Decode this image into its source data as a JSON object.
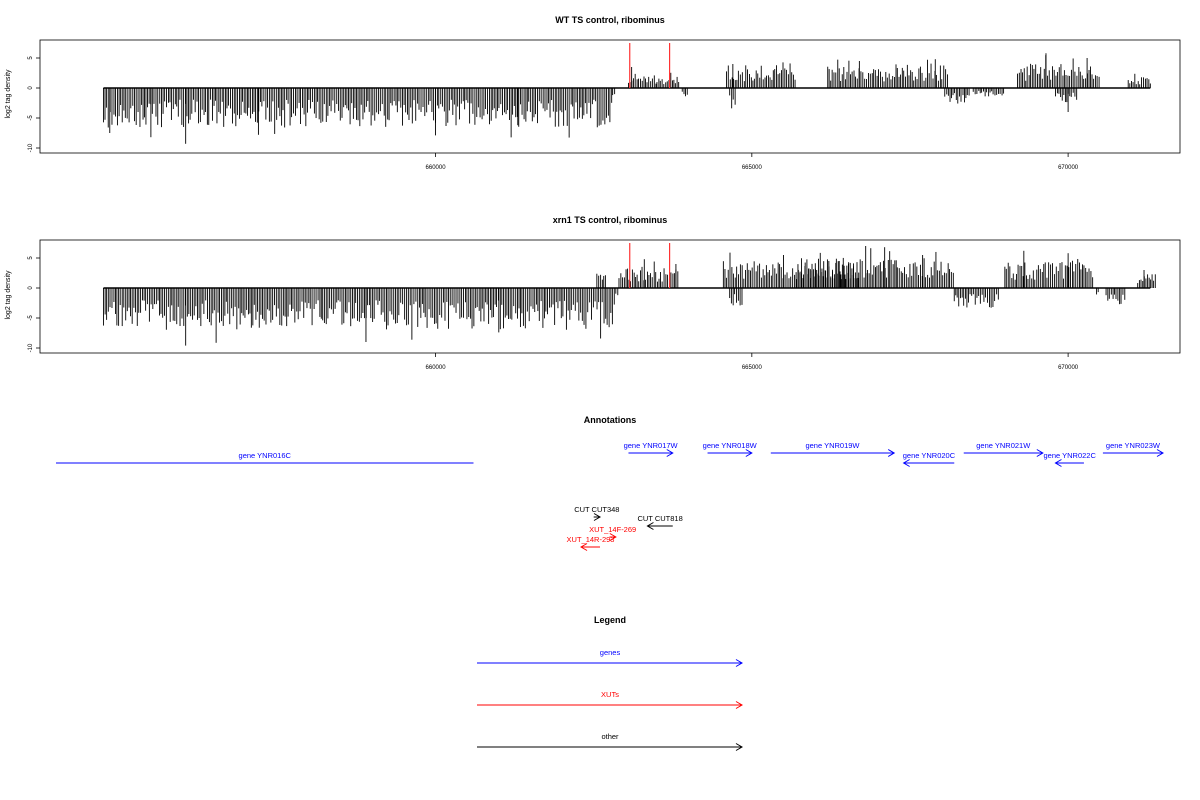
{
  "colors": {
    "gene": "#0000ff",
    "xut": "#ff0000",
    "other": "#000000",
    "axis": "#000000",
    "marker": "#ff3333"
  },
  "chart_data": [
    {
      "type": "bar",
      "title": "WT TS control, ribominus",
      "ylabel": "log2 tag density",
      "xlim": [
        654000,
        671500
      ],
      "ylim": [
        -10,
        7.5
      ],
      "x_ticks": [
        660000,
        665000,
        670000
      ],
      "y_ticks": [
        -10,
        -5,
        0,
        5
      ],
      "red_markers": [
        663070,
        663700
      ],
      "regions": [
        {
          "start": 654750,
          "end": 662800,
          "sign": -1,
          "amp": 5.5,
          "spikes": [
            [
              654850,
              7.5
            ],
            [
              655500,
              8.2
            ],
            [
              656050,
              9.3
            ],
            [
              657200,
              7.8
            ],
            [
              660000,
              7.9
            ],
            [
              661300,
              6.2
            ]
          ]
        },
        {
          "start": 662800,
          "end": 662850,
          "sign": -1,
          "amp": 1.0,
          "spikes": []
        },
        {
          "start": 663050,
          "end": 663500,
          "sign": 1,
          "amp": 2.0,
          "spikes": [
            [
              663100,
              3.5
            ]
          ]
        },
        {
          "start": 663500,
          "end": 663850,
          "sign": 1,
          "amp": 1.6,
          "spikes": []
        },
        {
          "start": 663900,
          "end": 664000,
          "sign": -1,
          "amp": 1.2,
          "spikes": []
        },
        {
          "start": 664600,
          "end": 665700,
          "sign": 1,
          "amp": 3.2,
          "spikes": [
            [
              664700,
              4.0
            ]
          ]
        },
        {
          "start": 664650,
          "end": 664750,
          "sign": -1,
          "amp": 2.4,
          "spikes": []
        },
        {
          "start": 666200,
          "end": 667300,
          "sign": 1,
          "amp": 3.0,
          "spikes": [
            [
              666700,
              4.5
            ]
          ]
        },
        {
          "start": 667300,
          "end": 668100,
          "sign": 1,
          "amp": 3.4,
          "spikes": [
            [
              667900,
              4.8
            ]
          ]
        },
        {
          "start": 668050,
          "end": 668450,
          "sign": -1,
          "amp": 2.1,
          "spikes": []
        },
        {
          "start": 668500,
          "end": 669000,
          "sign": -1,
          "amp": 1.3,
          "spikes": []
        },
        {
          "start": 669200,
          "end": 670500,
          "sign": 1,
          "amp": 3.4,
          "spikes": [
            [
              669650,
              5.8
            ],
            [
              670300,
              5.0
            ]
          ]
        },
        {
          "start": 669800,
          "end": 670150,
          "sign": -1,
          "amp": 2.0,
          "spikes": [
            [
              670000,
              4.0
            ]
          ]
        },
        {
          "start": 670950,
          "end": 671300,
          "sign": 1,
          "amp": 1.5,
          "spikes": []
        }
      ]
    },
    {
      "type": "bar",
      "title": "xrn1 TS control, ribominus",
      "ylabel": "log2 tag density",
      "xlim": [
        654000,
        671500
      ],
      "ylim": [
        -10,
        7.5
      ],
      "x_ticks": [
        660000,
        665000,
        670000
      ],
      "y_ticks": [
        -10,
        -5,
        0,
        5
      ],
      "red_markers": [
        663070,
        663700
      ],
      "regions": [
        {
          "start": 654750,
          "end": 662850,
          "sign": -1,
          "amp": 5.8,
          "spikes": [
            [
              656050,
              9.6
            ],
            [
              658900,
              9.0
            ],
            [
              661000,
              7.4
            ]
          ]
        },
        {
          "start": 662850,
          "end": 662900,
          "sign": -1,
          "amp": 1.5,
          "spikes": []
        },
        {
          "start": 662550,
          "end": 662700,
          "sign": 1,
          "amp": 2.0,
          "spikes": []
        },
        {
          "start": 662900,
          "end": 663850,
          "sign": 1,
          "amp": 2.8,
          "spikes": [
            [
              663300,
              4.8
            ],
            [
              663800,
              4.0
            ]
          ]
        },
        {
          "start": 664550,
          "end": 666700,
          "sign": 1,
          "amp": 3.8,
          "spikes": [
            [
              665500,
              5.5
            ]
          ]
        },
        {
          "start": 664650,
          "end": 664850,
          "sign": -1,
          "amp": 2.6,
          "spikes": []
        },
        {
          "start": 665700,
          "end": 667300,
          "sign": 1,
          "amp": 4.2,
          "spikes": [
            [
              666800,
              7.0
            ],
            [
              667100,
              6.8
            ]
          ]
        },
        {
          "start": 667300,
          "end": 668200,
          "sign": 1,
          "amp": 3.8,
          "spikes": [
            [
              667700,
              5.5
            ]
          ]
        },
        {
          "start": 668200,
          "end": 668900,
          "sign": -1,
          "amp": 2.8,
          "spikes": []
        },
        {
          "start": 669000,
          "end": 670400,
          "sign": 1,
          "amp": 3.8,
          "spikes": [
            [
              669300,
              6.2
            ],
            [
              670000,
              5.8
            ]
          ]
        },
        {
          "start": 670450,
          "end": 670500,
          "sign": -1,
          "amp": 1.5,
          "spikes": []
        },
        {
          "start": 670600,
          "end": 670900,
          "sign": -1,
          "amp": 2.3,
          "spikes": []
        },
        {
          "start": 671100,
          "end": 671400,
          "sign": 1,
          "amp": 2.2,
          "spikes": [
            [
              671200,
              3.0
            ]
          ]
        }
      ]
    }
  ],
  "annotations": {
    "title": "Annotations",
    "items": [
      {
        "label": "gene YNR016C",
        "type": "gene",
        "start": 654000,
        "end": 660600,
        "dir": "none",
        "row": 3
      },
      {
        "label": "gene YNR017W",
        "type": "gene",
        "start": 663050,
        "end": 663750,
        "dir": "right",
        "row": 1
      },
      {
        "label": "gene YNR018W",
        "type": "gene",
        "start": 664300,
        "end": 665000,
        "dir": "right",
        "row": 1
      },
      {
        "label": "gene YNR019W",
        "type": "gene",
        "start": 665300,
        "end": 667250,
        "dir": "right",
        "row": 1
      },
      {
        "label": "gene YNR020C",
        "type": "gene",
        "start": 667400,
        "end": 668200,
        "dir": "left",
        "row": 2
      },
      {
        "label": "gene YNR021W",
        "type": "gene",
        "start": 668350,
        "end": 669600,
        "dir": "right",
        "row": 1
      },
      {
        "label": "gene YNR022C",
        "type": "gene",
        "start": 669800,
        "end": 670250,
        "dir": "left",
        "row": 2
      },
      {
        "label": "gene YNR023W",
        "type": "gene",
        "start": 670550,
        "end": 671500,
        "dir": "right",
        "row": 1
      },
      {
        "label": "CUT CUT348",
        "type": "other",
        "start": 662500,
        "end": 662600,
        "dir": "right",
        "row": 4
      },
      {
        "label": "CUT CUT818",
        "type": "other",
        "start": 663350,
        "end": 663750,
        "dir": "left",
        "row": 5
      },
      {
        "label": "XUT_14F-269",
        "type": "xut",
        "start": 662750,
        "end": 662850,
        "dir": "right",
        "row": 6
      },
      {
        "label": "XUT_14R-293",
        "type": "xut",
        "start": 662300,
        "end": 662600,
        "dir": "left",
        "row": 7
      }
    ]
  },
  "legend": {
    "title": "Legend",
    "items": [
      {
        "label": "genes",
        "type": "gene"
      },
      {
        "label": "XUTs",
        "type": "xut"
      },
      {
        "label": "other",
        "type": "other"
      }
    ]
  }
}
